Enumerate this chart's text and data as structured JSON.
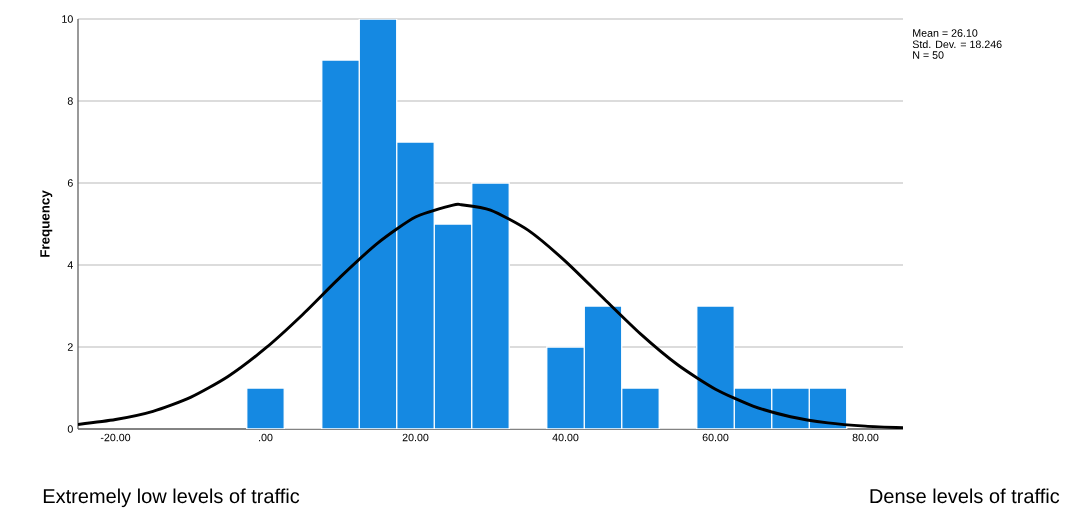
{
  "chart_data": {
    "type": "histogram",
    "ylabel": "Frequency",
    "bins": [
      -2.5,
      2.5,
      7.5,
      12.5,
      17.5,
      22.5,
      27.5,
      32.5,
      37.5,
      42.5,
      47.5,
      52.5,
      57.5,
      62.5,
      67.5,
      72.5,
      77.5
    ],
    "values": [
      1,
      0,
      9,
      10,
      7,
      5,
      6,
      0,
      2,
      3,
      1,
      0,
      3,
      1,
      1,
      1
    ],
    "color": "#1589e2",
    "series": [
      {
        "type": "line",
        "color": "#000000",
        "x": [
          -25,
          -20,
          -15,
          -10,
          -5,
          0,
          5,
          10,
          15,
          20,
          25,
          26.1,
          30,
          35,
          40,
          45,
          50,
          55,
          60,
          65,
          70,
          75,
          80,
          85
        ],
        "values": [
          0.11,
          0.23,
          0.43,
          0.77,
          1.28,
          1.97,
          2.8,
          3.71,
          4.54,
          5.17,
          5.46,
          5.47,
          5.34,
          4.85,
          4.09,
          3.2,
          2.32,
          1.56,
          0.97,
          0.56,
          0.3,
          0.15,
          0.07,
          0.03
        ]
      }
    ],
    "xlim": [
      -25,
      85
    ],
    "ylim": [
      0,
      10
    ],
    "xticks": [
      {
        "value": -20,
        "label": "-20.00"
      },
      {
        "value": 0,
        "label": ".00"
      },
      {
        "value": 20,
        "label": "20.00"
      },
      {
        "value": 40,
        "label": "40.00"
      },
      {
        "value": 60,
        "label": "60.00"
      },
      {
        "value": 80,
        "label": "80.00"
      }
    ],
    "yticks": [
      0,
      2,
      4,
      6,
      8,
      10
    ],
    "grid": "y",
    "annotations": [
      "Mean = 26.10",
      "Std. Dev. = 18.246",
      "N = 50",
      "Extremely low levels of traffic",
      "Dense levels of traffic"
    ]
  }
}
